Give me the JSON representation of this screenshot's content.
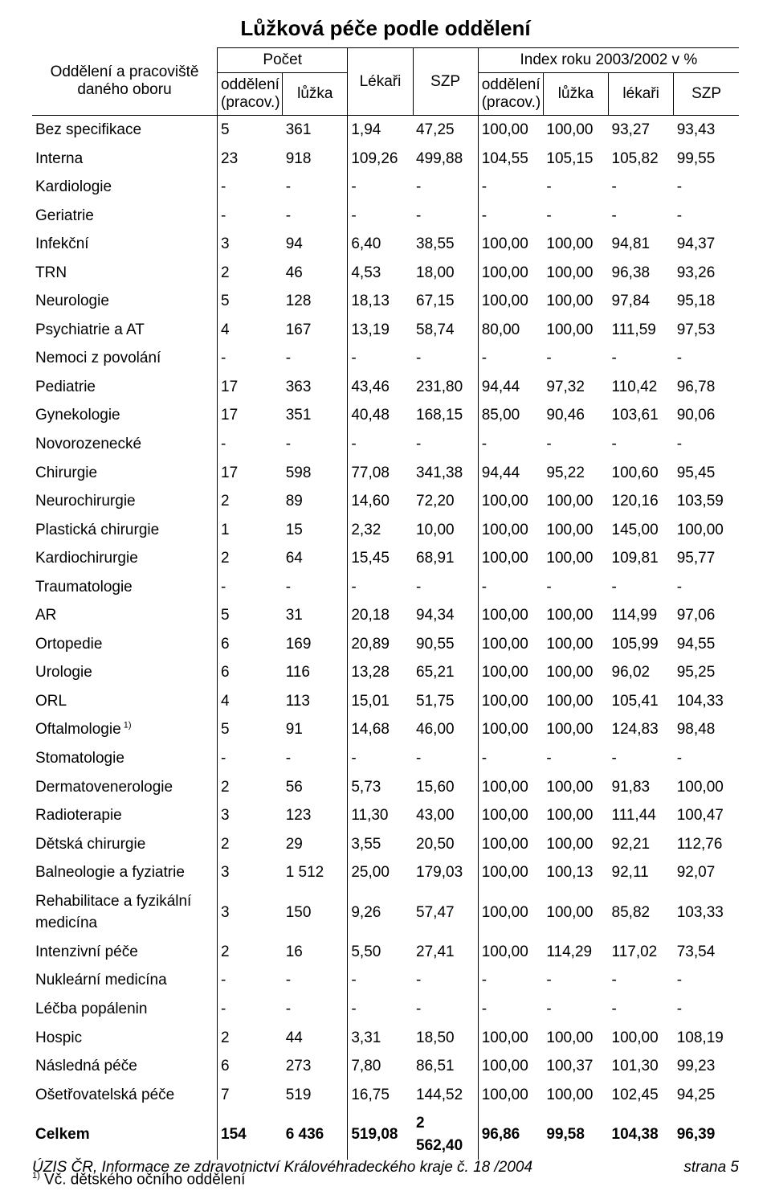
{
  "title": "Lůžková péče podle oddělení",
  "header": {
    "rowname_line1": "Oddělení a pracoviště",
    "rowname_line2": "daného oboru",
    "grp_pocet": "Počet",
    "grp_index": "Index roku 2003/2002 v %",
    "lekari": "Lékaři",
    "szp": "SZP",
    "oddeleni_l1": "oddělení",
    "oddeleni_l2": "(pracov.)",
    "luzka": "lůžka",
    "lekari_lc": "lékaři",
    "szp_lc": "SZP"
  },
  "rows": [
    {
      "name": "Bez specifikace",
      "c": [
        "5",
        "361",
        "1,94",
        "47,25",
        "100,00",
        "100,00",
        "93,27",
        "93,43"
      ]
    },
    {
      "name": "Interna",
      "c": [
        "23",
        "918",
        "109,26",
        "499,88",
        "104,55",
        "105,15",
        "105,82",
        "99,55"
      ]
    },
    {
      "name": "Kardiologie",
      "c": [
        "-",
        "-",
        "-",
        "-",
        "-",
        "-",
        "-",
        "-"
      ]
    },
    {
      "name": "Geriatrie",
      "c": [
        "-",
        "-",
        "-",
        "-",
        "-",
        "-",
        "-",
        "-"
      ]
    },
    {
      "name": "Infekční",
      "c": [
        "3",
        "94",
        "6,40",
        "38,55",
        "100,00",
        "100,00",
        "94,81",
        "94,37"
      ]
    },
    {
      "name": "TRN",
      "c": [
        "2",
        "46",
        "4,53",
        "18,00",
        "100,00",
        "100,00",
        "96,38",
        "93,26"
      ]
    },
    {
      "name": "Neurologie",
      "c": [
        "5",
        "128",
        "18,13",
        "67,15",
        "100,00",
        "100,00",
        "97,84",
        "95,18"
      ]
    },
    {
      "name": "Psychiatrie a AT",
      "c": [
        "4",
        "167",
        "13,19",
        "58,74",
        "80,00",
        "100,00",
        "111,59",
        "97,53"
      ]
    },
    {
      "name": "Nemoci z povolání",
      "c": [
        "-",
        "-",
        "-",
        "-",
        "-",
        "-",
        "-",
        "-"
      ]
    },
    {
      "name": "Pediatrie",
      "c": [
        "17",
        "363",
        "43,46",
        "231,80",
        "94,44",
        "97,32",
        "110,42",
        "96,78"
      ]
    },
    {
      "name": "Gynekologie",
      "c": [
        "17",
        "351",
        "40,48",
        "168,15",
        "85,00",
        "90,46",
        "103,61",
        "90,06"
      ]
    },
    {
      "name": "Novorozenecké",
      "c": [
        "-",
        "-",
        "-",
        "-",
        "-",
        "-",
        "-",
        "-"
      ]
    },
    {
      "name": "Chirurgie",
      "c": [
        "17",
        "598",
        "77,08",
        "341,38",
        "94,44",
        "95,22",
        "100,60",
        "95,45"
      ]
    },
    {
      "name": "Neurochirurgie",
      "c": [
        "2",
        "89",
        "14,60",
        "72,20",
        "100,00",
        "100,00",
        "120,16",
        "103,59"
      ]
    },
    {
      "name": "Plastická chirurgie",
      "c": [
        "1",
        "15",
        "2,32",
        "10,00",
        "100,00",
        "100,00",
        "145,00",
        "100,00"
      ]
    },
    {
      "name": "Kardiochirurgie",
      "c": [
        "2",
        "64",
        "15,45",
        "68,91",
        "100,00",
        "100,00",
        "109,81",
        "95,77"
      ]
    },
    {
      "name": "Traumatologie",
      "c": [
        "-",
        "-",
        "-",
        "-",
        "-",
        "-",
        "-",
        "-"
      ]
    },
    {
      "name": "AR",
      "c": [
        "5",
        "31",
        "20,18",
        "94,34",
        "100,00",
        "100,00",
        "114,99",
        "97,06"
      ]
    },
    {
      "name": "Ortopedie",
      "c": [
        "6",
        "169",
        "20,89",
        "90,55",
        "100,00",
        "100,00",
        "105,99",
        "94,55"
      ]
    },
    {
      "name": "Urologie",
      "c": [
        "6",
        "116",
        "13,28",
        "65,21",
        "100,00",
        "100,00",
        "96,02",
        "95,25"
      ]
    },
    {
      "name": "ORL",
      "c": [
        "4",
        "113",
        "15,01",
        "51,75",
        "100,00",
        "100,00",
        "105,41",
        "104,33"
      ]
    },
    {
      "name": "Oftalmologie",
      "sup": "1)",
      "c": [
        "5",
        "91",
        "14,68",
        "46,00",
        "100,00",
        "100,00",
        "124,83",
        "98,48"
      ]
    },
    {
      "name": "Stomatologie",
      "c": [
        "-",
        "-",
        "-",
        "-",
        "-",
        "-",
        "-",
        "-"
      ]
    },
    {
      "name": "Dermatovenerologie",
      "c": [
        "2",
        "56",
        "5,73",
        "15,60",
        "100,00",
        "100,00",
        "91,83",
        "100,00"
      ]
    },
    {
      "name": "Radioterapie",
      "c": [
        "3",
        "123",
        "11,30",
        "43,00",
        "100,00",
        "100,00",
        "111,44",
        "100,47"
      ]
    },
    {
      "name": "Dětská chirurgie",
      "c": [
        "2",
        "29",
        "3,55",
        "20,50",
        "100,00",
        "100,00",
        "92,21",
        "112,76"
      ]
    },
    {
      "name": "Balneologie a fyziatrie",
      "c": [
        "3",
        "1 512",
        "25,00",
        "179,03",
        "100,00",
        "100,13",
        "92,11",
        "92,07"
      ]
    },
    {
      "name": "Rehabilitace a fyzikální medicína",
      "c": [
        "3",
        "150",
        "9,26",
        "57,47",
        "100,00",
        "100,00",
        "85,82",
        "103,33"
      ]
    },
    {
      "name": "Intenzivní péče",
      "c": [
        "2",
        "16",
        "5,50",
        "27,41",
        "100,00",
        "114,29",
        "117,02",
        "73,54"
      ]
    },
    {
      "name": "Nukleární medicína",
      "c": [
        "-",
        "-",
        "-",
        "-",
        "-",
        "-",
        "-",
        "-"
      ]
    },
    {
      "name": "Léčba popálenin",
      "c": [
        "-",
        "-",
        "-",
        "-",
        "-",
        "-",
        "-",
        "-"
      ]
    },
    {
      "name": "Hospic",
      "c": [
        "2",
        "44",
        "3,31",
        "18,50",
        "100,00",
        "100,00",
        "100,00",
        "108,19"
      ]
    },
    {
      "name": "Následná péče",
      "c": [
        "6",
        "273",
        "7,80",
        "86,51",
        "100,00",
        "100,37",
        "101,30",
        "99,23"
      ]
    },
    {
      "name": "Ošetřovatelská péče",
      "c": [
        "7",
        "519",
        "16,75",
        "144,52",
        "100,00",
        "100,00",
        "102,45",
        "94,25"
      ]
    }
  ],
  "total": {
    "name": "Celkem",
    "c": [
      "154",
      "6 436",
      "519,08",
      "2 562,40",
      "96,86",
      "99,58",
      "104,38",
      "96,39"
    ]
  },
  "footnote_sup": "1)",
  "footnote_text": " Vč. dětského očního oddělení",
  "footer_left": "ÚZIS ČR, Informace ze zdravotnictví Královéhradeckého kraje č. 18 /2004",
  "footer_right": "strana 5"
}
